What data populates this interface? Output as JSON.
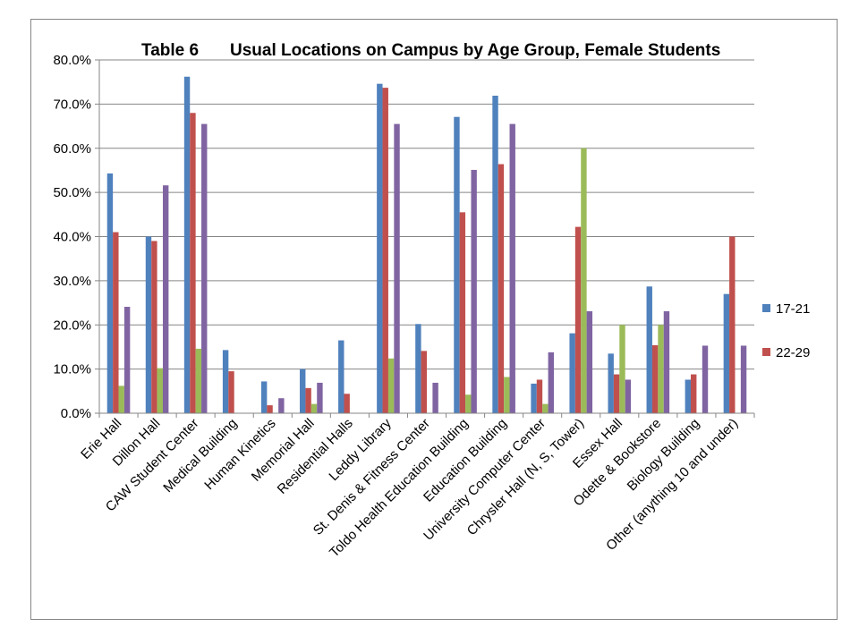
{
  "chart_data": {
    "type": "bar",
    "title_prefix": "Table 6",
    "title_main": "Usual Locations on Campus by Age Group, Female Students",
    "categories": [
      "Erie Hall",
      "Dillon Hall",
      "CAW Student Center",
      "Medical Building",
      "Human Kinetics",
      "Memorial Hall",
      "Residential Halls",
      "Leddy Library",
      "St. Denis & Fitness Center",
      "Toldo Health Education Building",
      "Education Building",
      "University Computer Center",
      "Chrysler Hall (N, S, Tower)",
      "Essex Hall",
      "Odette & Bookstore",
      "Biology Building",
      "Other (anything 10 and under)"
    ],
    "series": [
      {
        "name": "17-21",
        "color": "#4F81BD",
        "values": [
          54.3,
          40.0,
          76.2,
          14.3,
          7.2,
          10.0,
          16.5,
          74.6,
          20.2,
          67.1,
          71.9,
          6.7,
          18.1,
          13.5,
          28.7,
          7.6,
          27.0
        ]
      },
      {
        "name": "22-29",
        "color": "#C0504D",
        "values": [
          41.0,
          39.0,
          68.0,
          9.5,
          1.8,
          5.7,
          4.4,
          73.7,
          14.1,
          45.5,
          56.4,
          7.6,
          42.2,
          8.8,
          15.4,
          8.8,
          40.0
        ]
      },
      {
        "color": "#9BBB59",
        "values": [
          6.2,
          10.2,
          14.6,
          0,
          0,
          2.1,
          0,
          12.4,
          0,
          4.2,
          8.2,
          2.1,
          60.0,
          20.0,
          20.0,
          0,
          0
        ]
      },
      {
        "color": "#8064A2",
        "values": [
          24.1,
          51.6,
          65.5,
          0,
          3.4,
          6.9,
          0,
          65.5,
          6.9,
          55.1,
          65.5,
          13.8,
          23.1,
          7.6,
          23.1,
          15.3,
          15.3
        ]
      }
    ],
    "ylim": [
      0,
      80
    ],
    "y_ticks": [
      "0.0%",
      "10.0%",
      "20.0%",
      "30.0%",
      "40.0%",
      "50.0%",
      "60.0%",
      "70.0%",
      "80.0%"
    ],
    "grid": "horizontal",
    "legend_position": "right"
  },
  "colors": {
    "frame_border": "#868686",
    "gridline": "#868686",
    "axis": "#868686"
  }
}
